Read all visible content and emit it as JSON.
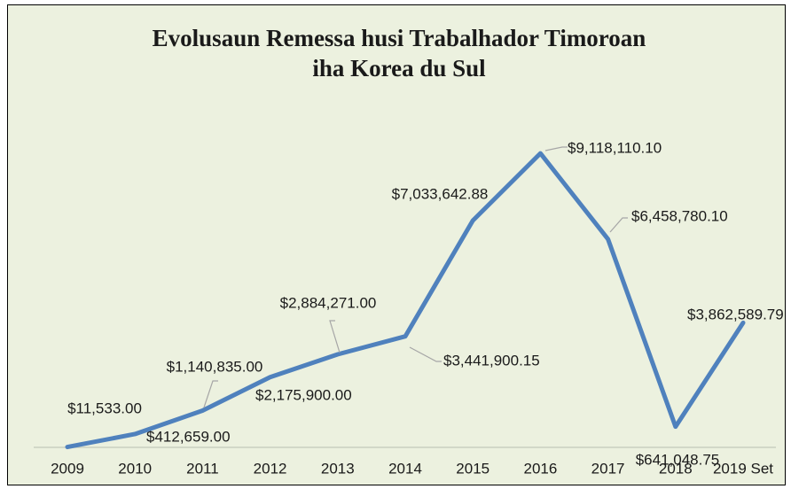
{
  "chart_data": {
    "type": "line",
    "title": [
      "Evolusaun Remessa husi Trabalhador Timoroan",
      "iha Korea du Sul"
    ],
    "categories": [
      "2009",
      "2010",
      "2011",
      "2012",
      "2013",
      "2014",
      "2015",
      "2016",
      "2017",
      "2018",
      "2019 Set"
    ],
    "series": [
      {
        "color": "#4f81bd",
        "values": [
          11533.0,
          412659.0,
          1140835.0,
          2175900.0,
          2884271.0,
          3441900.15,
          7033642.88,
          9118110.1,
          6458780.1,
          641048.75,
          3862589.79
        ],
        "value_labels": [
          "$11,533.00",
          "$412,659.00",
          "$1,140,835.00",
          "$2,175,900.00",
          "$2,884,271.00",
          "$3,441,900.15",
          "$7,033,642.88",
          "$9,118,110.10",
          "$6,458,780.10",
          "$641,048.75",
          "$3,862,589.79"
        ]
      }
    ],
    "ylim": [
      0,
      10000000
    ]
  }
}
